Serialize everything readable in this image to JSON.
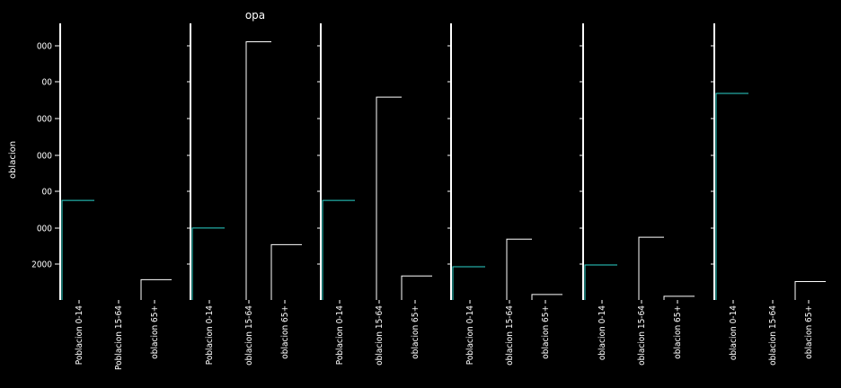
{
  "chart_data": {
    "type": "bar",
    "title": "opa",
    "ylabel": "oblacion",
    "y_tick_labels": [
      "2000",
      "000",
      "00",
      "000",
      "000",
      "00",
      "000"
    ],
    "x_tick_labels": [
      [
        "Poblacion 0-14",
        "Poblacion 15-64",
        "oblacion 65+"
      ],
      [
        "Poblacion 0-14",
        "oblacion 15-64",
        "oblacion 65+"
      ],
      [
        "Poblacion 0-14",
        "oblacion 15-64",
        "oblacion 65+"
      ],
      [
        "Poblacion 0-14",
        "oblacion 15-64",
        "oblacion 65+"
      ],
      [
        "oblacion 0-14",
        "oblacion 15-64",
        "oblacion 65+"
      ],
      [
        "oblacion 0-14",
        "oblacion 15-64",
        "oblacion 65+"
      ]
    ],
    "ylim": [
      0,
      7500
    ],
    "panels": [
      {
        "values": [
          2700,
          0,
          550
        ]
      },
      {
        "values": [
          1950,
          7000,
          1500
        ]
      },
      {
        "values": [
          2700,
          5500,
          650
        ]
      },
      {
        "values": [
          900,
          1650,
          150
        ]
      },
      {
        "values": [
          950,
          1700,
          100
        ]
      },
      {
        "values": [
          5600,
          0,
          500
        ]
      }
    ],
    "colors": {
      "bar": "#2bd4cc",
      "axis": "#ffffff",
      "background": "#000000"
    }
  }
}
